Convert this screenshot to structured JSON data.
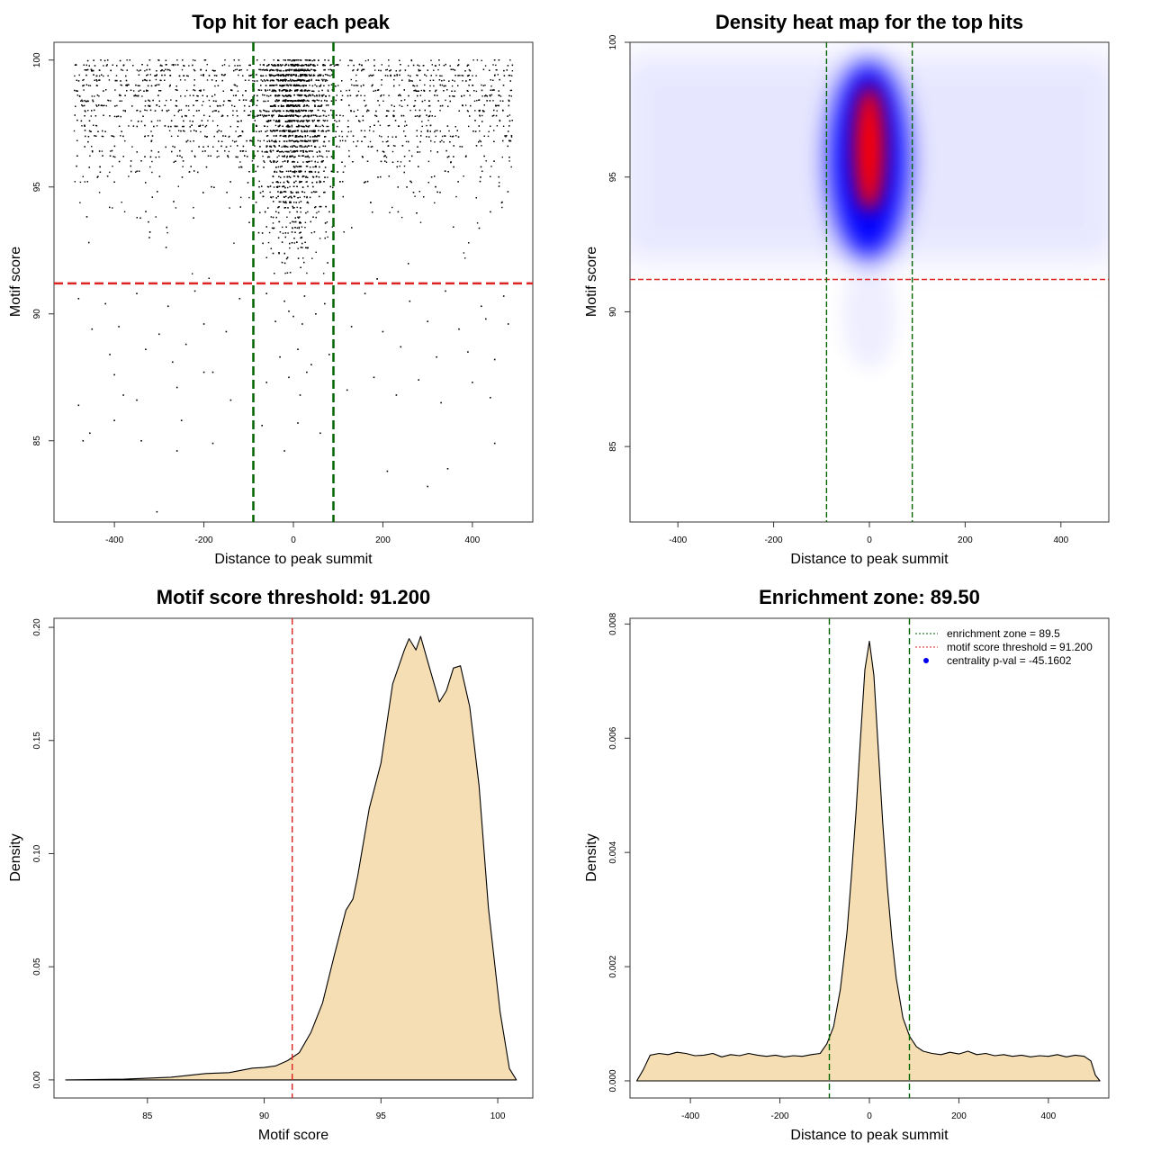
{
  "chart_data": [
    {
      "type": "scatter",
      "title": "Top hit for each peak",
      "xlabel": "Distance to peak summit",
      "ylabel": "Motif score",
      "xlim": [
        -535,
        535
      ],
      "ylim": [
        81.8,
        100.7
      ],
      "x_ticks": [
        -400,
        -200,
        0,
        200,
        400
      ],
      "y_ticks": [
        85,
        90,
        95,
        100
      ],
      "hlines": [
        {
          "y": 91.2,
          "color": "#dd2222"
        }
      ],
      "vlines": [
        {
          "x": -89.5,
          "color": "#006400"
        },
        {
          "x": 89.5,
          "color": "#006400"
        }
      ],
      "points": [
        [
          -305,
          82.2
        ],
        [
          -480,
          86.4
        ],
        [
          -470,
          85.0
        ],
        [
          -455,
          85.3
        ],
        [
          -400,
          85.8
        ],
        [
          -340,
          85.0
        ],
        [
          -260,
          84.6
        ],
        [
          -250,
          85.8
        ],
        [
          -180,
          84.9
        ],
        [
          -70,
          85.6
        ],
        [
          -20,
          84.6
        ],
        [
          10,
          85.7
        ],
        [
          60,
          85.3
        ],
        [
          90,
          84.5
        ],
        [
          210,
          83.8
        ],
        [
          300,
          83.2
        ],
        [
          345,
          83.9
        ],
        [
          450,
          84.9
        ],
        [
          -400,
          87.6
        ],
        [
          -350,
          86.6
        ],
        [
          -380,
          86.8
        ],
        [
          -260,
          87.1
        ],
        [
          -200,
          87.7
        ],
        [
          -180,
          87.7
        ],
        [
          -140,
          86.6
        ],
        [
          -60,
          87.3
        ],
        [
          -10,
          87.5
        ],
        [
          15,
          86.8
        ],
        [
          30,
          87.7
        ],
        [
          120,
          87.0
        ],
        [
          180,
          87.5
        ],
        [
          230,
          86.8
        ],
        [
          280,
          87.4
        ],
        [
          330,
          86.5
        ],
        [
          400,
          87.3
        ],
        [
          440,
          86.7
        ],
        [
          -410,
          88.4
        ],
        [
          -330,
          88.6
        ],
        [
          -270,
          88.1
        ],
        [
          -240,
          88.8
        ],
        [
          -30,
          88.3
        ],
        [
          10,
          88.6
        ],
        [
          40,
          88.0
        ],
        [
          80,
          88.4
        ],
        [
          240,
          88.7
        ],
        [
          320,
          88.3
        ],
        [
          390,
          88.5
        ],
        [
          450,
          88.2
        ],
        [
          -450,
          89.4
        ],
        [
          -390,
          89.5
        ],
        [
          -300,
          89.2
        ],
        [
          -200,
          89.6
        ],
        [
          -150,
          89.3
        ],
        [
          -40,
          89.7
        ],
        [
          0,
          89.9
        ],
        [
          20,
          89.6
        ],
        [
          50,
          90.0
        ],
        [
          -10,
          90.1
        ],
        [
          130,
          89.5
        ],
        [
          200,
          89.3
        ],
        [
          300,
          89.7
        ],
        [
          370,
          89.4
        ],
        [
          430,
          89.8
        ],
        [
          480,
          89.6
        ],
        [
          -480,
          90.6
        ],
        [
          -420,
          90.4
        ],
        [
          -350,
          90.8
        ],
        [
          -280,
          90.3
        ],
        [
          -220,
          90.9
        ],
        [
          -120,
          90.6
        ],
        [
          -60,
          90.8
        ],
        [
          -20,
          90.5
        ],
        [
          25,
          90.7
        ],
        [
          70,
          90.4
        ],
        [
          160,
          90.8
        ],
        [
          260,
          90.5
        ],
        [
          340,
          90.9
        ],
        [
          420,
          90.3
        ],
        [
          470,
          90.7
        ]
      ]
    },
    {
      "type": "heatmap",
      "title": "Density heat map for the top hits",
      "xlabel": "Distance to peak summit",
      "ylabel": "Motif score",
      "xlim": [
        -500,
        500
      ],
      "ylim": [
        82.2,
        100.0
      ],
      "x_ticks": [
        -400,
        -200,
        0,
        200,
        400
      ],
      "y_ticks": [
        85,
        90,
        95,
        100
      ],
      "hlines": [
        {
          "y": 91.2,
          "color": "#dd2222"
        }
      ],
      "vlines": [
        {
          "x": -89.5,
          "color": "#006400"
        },
        {
          "x": 89.5,
          "color": "#006400"
        }
      ]
    },
    {
      "type": "area",
      "title": "Motif score threshold: 91.200",
      "xlabel": "Motif score",
      "ylabel": "Density",
      "xlim": [
        81,
        101.5
      ],
      "ylim": [
        -0.008,
        0.204
      ],
      "x_ticks": [
        85,
        90,
        95,
        100
      ],
      "y_ticks": [
        0.0,
        0.05,
        0.1,
        0.15,
        0.2
      ],
      "y_tick_labels": [
        "0.00",
        "0.05",
        "0.10",
        "0.15",
        "0.20"
      ],
      "vlines": [
        {
          "x": 91.2,
          "color": "#dd2222"
        }
      ],
      "fill_color": "#f5deb3",
      "x": [
        81.5,
        84,
        86,
        87.5,
        88.5,
        89.5,
        90,
        90.5,
        91,
        91.5,
        92,
        92.5,
        93,
        93.5,
        93.8,
        94,
        94.5,
        95,
        95.5,
        96,
        96.2,
        96.5,
        96.7,
        97,
        97.5,
        97.8,
        98.1,
        98.4,
        98.8,
        99.2,
        99.6,
        100.1,
        100.5,
        100.8
      ],
      "y": [
        0.0,
        0.0003,
        0.0012,
        0.0028,
        0.0032,
        0.0052,
        0.0055,
        0.0062,
        0.0085,
        0.012,
        0.021,
        0.034,
        0.055,
        0.075,
        0.08,
        0.09,
        0.12,
        0.14,
        0.175,
        0.19,
        0.195,
        0.19,
        0.196,
        0.185,
        0.167,
        0.172,
        0.182,
        0.183,
        0.165,
        0.13,
        0.076,
        0.03,
        0.005,
        0.0
      ]
    },
    {
      "type": "area",
      "title": "Enrichment zone: 89.50",
      "xlabel": "Distance to peak summit",
      "ylabel": "Density",
      "xlim": [
        -535,
        535
      ],
      "ylim": [
        -0.0003,
        0.0081
      ],
      "x_ticks": [
        -400,
        -200,
        0,
        200,
        400
      ],
      "y_ticks": [
        0.0,
        0.002,
        0.004,
        0.006,
        0.008
      ],
      "y_tick_labels": [
        "0.000",
        "0.002",
        "0.004",
        "0.006",
        "0.008"
      ],
      "vlines": [
        {
          "x": -89.5,
          "color": "#006400"
        },
        {
          "x": 89.5,
          "color": "#006400"
        }
      ],
      "fill_color": "#f5deb3",
      "legend": {
        "position": "top-right",
        "entries": [
          {
            "label": "enrichment zone = 89.5",
            "color": "#006400",
            "style": "dotted-line"
          },
          {
            "label": "motif score threshold = 91.200",
            "color": "#dd2222",
            "style": "dotted-line"
          },
          {
            "label": "centrality p-val = -45.1602",
            "color": "#0000ee",
            "style": "point"
          }
        ]
      },
      "x": [
        -520,
        -505,
        -490,
        -470,
        -450,
        -430,
        -410,
        -390,
        -370,
        -350,
        -330,
        -310,
        -290,
        -270,
        -250,
        -230,
        -210,
        -190,
        -170,
        -150,
        -130,
        -110,
        -95,
        -80,
        -65,
        -50,
        -40,
        -30,
        -20,
        -10,
        0,
        10,
        20,
        30,
        40,
        50,
        60,
        75,
        90,
        105,
        120,
        140,
        160,
        180,
        200,
        220,
        240,
        260,
        280,
        300,
        320,
        340,
        360,
        380,
        400,
        420,
        440,
        460,
        480,
        495,
        505,
        515
      ],
      "y": [
        0.0,
        0.0002,
        0.00045,
        0.00048,
        0.00046,
        0.0005,
        0.00048,
        0.00044,
        0.00045,
        0.00048,
        0.00042,
        0.00046,
        0.00044,
        0.00048,
        0.00045,
        0.00043,
        0.00045,
        0.00042,
        0.00044,
        0.00043,
        0.00046,
        0.00048,
        0.00065,
        0.00095,
        0.0016,
        0.0026,
        0.0036,
        0.0047,
        0.006,
        0.0072,
        0.0077,
        0.0071,
        0.0058,
        0.0045,
        0.0034,
        0.0025,
        0.0018,
        0.0011,
        0.00078,
        0.0006,
        0.00052,
        0.00048,
        0.00046,
        0.0005,
        0.00047,
        0.00052,
        0.00046,
        0.00048,
        0.00044,
        0.00046,
        0.00043,
        0.00045,
        0.00042,
        0.00044,
        0.00043,
        0.00046,
        0.00042,
        0.00045,
        0.00043,
        0.00035,
        0.0001,
        0.0
      ]
    }
  ]
}
